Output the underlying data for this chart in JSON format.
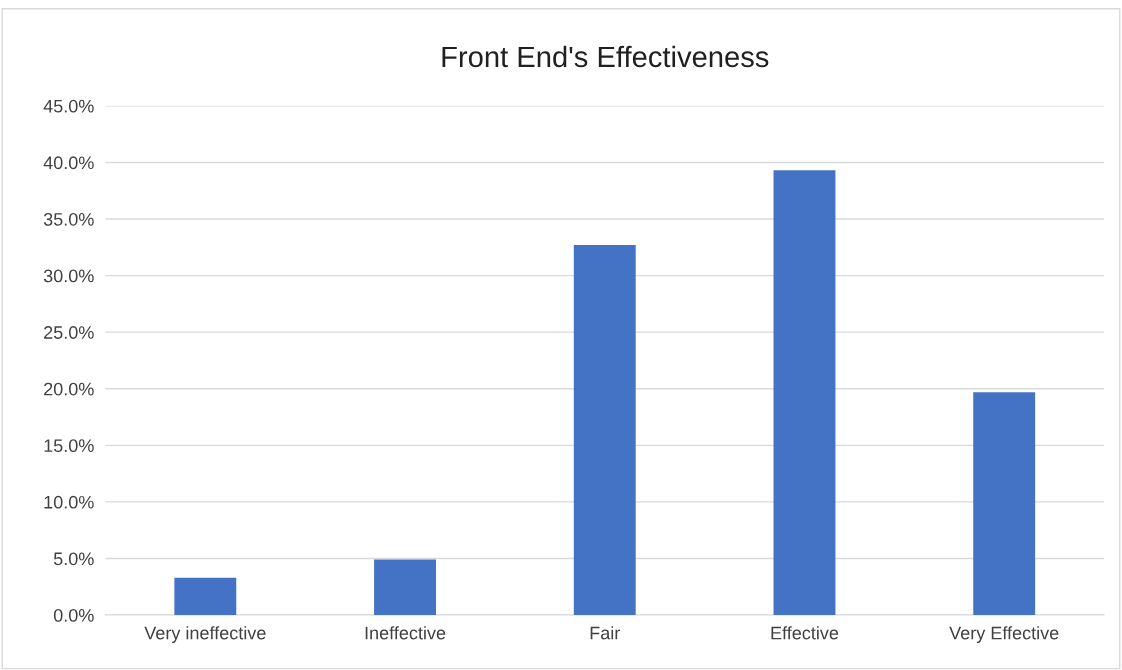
{
  "chart_data": {
    "type": "bar",
    "title": "Front End's Effectiveness",
    "categories": [
      "Very ineffective",
      "Ineffective",
      "Fair",
      "Effective",
      "Very Effective"
    ],
    "values": [
      3.3,
      4.9,
      32.7,
      39.3,
      19.7
    ],
    "color": "#4472c4",
    "ylim": [
      0,
      45
    ],
    "yticks": [
      {
        "value": 0,
        "label": "0.0%"
      },
      {
        "value": 5,
        "label": "5.0%"
      },
      {
        "value": 10,
        "label": "10.0%"
      },
      {
        "value": 15,
        "label": "15.0%"
      },
      {
        "value": 20,
        "label": "20.0%"
      },
      {
        "value": 25,
        "label": "25.0%"
      },
      {
        "value": 30,
        "label": "30.0%"
      },
      {
        "value": 35,
        "label": "35.0%"
      },
      {
        "value": 40,
        "label": "40.0%"
      },
      {
        "value": 45,
        "label": "45.0%"
      }
    ],
    "grid": "y"
  }
}
